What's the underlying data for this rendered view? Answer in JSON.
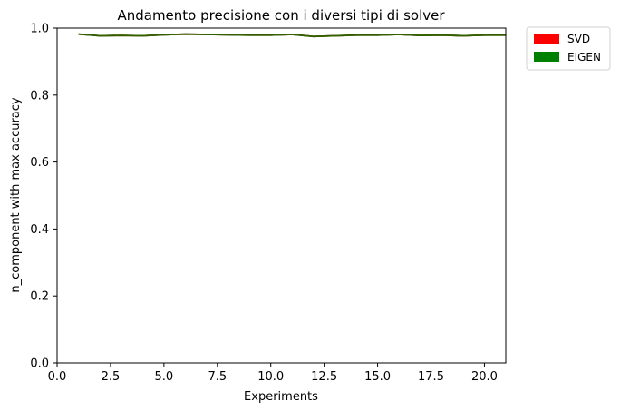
{
  "chart_data": {
    "type": "line",
    "title": "Andamento precisione con i diversi tipi di solver",
    "xlabel": "Experiments",
    "ylabel": "n_component with max accuracy",
    "xlim": [
      0,
      21
    ],
    "ylim": [
      0,
      1.0
    ],
    "xticks": [
      0,
      2.5,
      5,
      7.5,
      10,
      12.5,
      15,
      17.5,
      20
    ],
    "xtick_labels": [
      "0.0",
      "2.5",
      "5.0",
      "7.5",
      "10.0",
      "12.5",
      "15.0",
      "17.5",
      "20.0"
    ],
    "yticks": [
      0,
      0.2,
      0.4,
      0.6,
      0.8,
      1.0
    ],
    "ytick_labels": [
      "0.0",
      "0.2",
      "0.4",
      "0.6",
      "0.8",
      "1.0"
    ],
    "grid": false,
    "legend_position": "outside-top-right",
    "x": [
      1,
      2,
      3,
      4,
      5,
      6,
      7,
      8,
      9,
      10,
      11,
      12,
      13,
      14,
      15,
      16,
      17,
      18,
      19,
      20,
      21
    ],
    "series": [
      {
        "name": "SVD",
        "color": "#ff0000",
        "values": [
          0.982,
          0.977,
          0.978,
          0.977,
          0.98,
          0.982,
          0.981,
          0.98,
          0.979,
          0.979,
          0.981,
          0.975,
          0.977,
          0.979,
          0.979,
          0.981,
          0.978,
          0.979,
          0.977,
          0.979,
          0.979
        ]
      },
      {
        "name": "EIGEN",
        "color": "#008000",
        "values": [
          0.982,
          0.977,
          0.978,
          0.977,
          0.98,
          0.982,
          0.981,
          0.98,
          0.979,
          0.979,
          0.981,
          0.975,
          0.977,
          0.979,
          0.979,
          0.981,
          0.978,
          0.979,
          0.977,
          0.979,
          0.979
        ]
      }
    ]
  }
}
